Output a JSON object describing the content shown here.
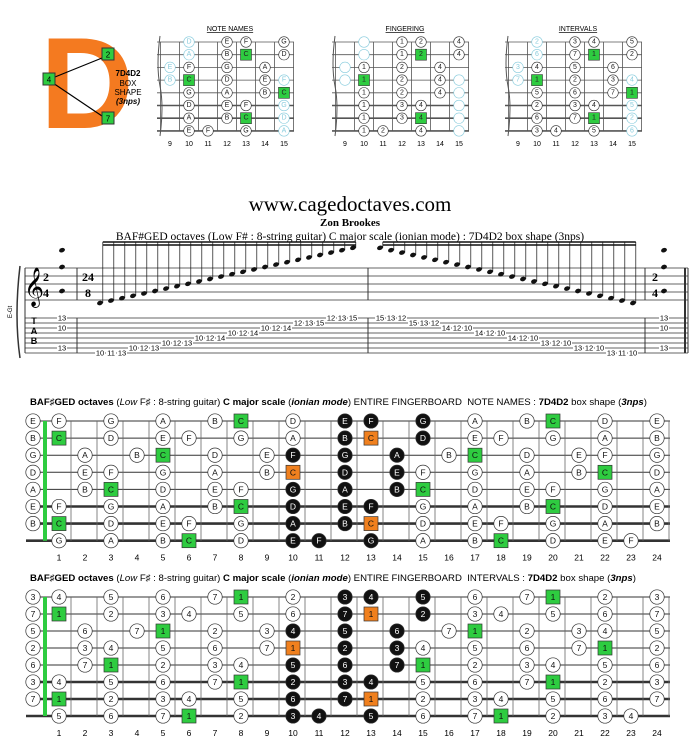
{
  "logo": {
    "letter": "D",
    "labels": [
      "2",
      "4",
      "7"
    ],
    "name": "7D4D2",
    "lines": [
      "BOX",
      "SHAPE",
      "(3nps)"
    ]
  },
  "small": {
    "headers": [
      "NOTE NAMES",
      "FINGERING",
      "INTERVALS"
    ],
    "frets": [
      9,
      10,
      11,
      12,
      13,
      14,
      15
    ],
    "fingers": [
      [
        1,
        2,
        4
      ],
      [
        1,
        2,
        4
      ],
      [
        1,
        2,
        4
      ],
      [
        1,
        2,
        4
      ],
      [
        1,
        2,
        4
      ],
      [
        1,
        3,
        4
      ],
      [
        1,
        3,
        4
      ],
      [
        1,
        2,
        4
      ]
    ]
  },
  "site": "www.cagedoctaves.com",
  "author": "Zon Brookes",
  "subtitle": "BAF#GED octaves (Low F# : 8-string guitar) C major scale (ionian mode) : 7D4D2 box shape (3nps)",
  "notation": {
    "instrument": "E-Gt",
    "tab_label": [
      "T",
      "A",
      "B"
    ],
    "time_start": [
      "2",
      "4"
    ],
    "time_run": [
      "24",
      "8"
    ],
    "time_end": [
      "2",
      "4"
    ],
    "chord": [
      [
        1,
        13
      ],
      [
        3,
        10
      ],
      [
        7,
        13
      ]
    ],
    "ascending": [
      [
        8,
        10
      ],
      [
        8,
        11
      ],
      [
        8,
        13
      ],
      [
        7,
        10
      ],
      [
        7,
        12
      ],
      [
        7,
        13
      ],
      [
        6,
        10
      ],
      [
        6,
        12
      ],
      [
        6,
        13
      ],
      [
        5,
        10
      ],
      [
        5,
        12
      ],
      [
        5,
        14
      ],
      [
        4,
        10
      ],
      [
        4,
        12
      ],
      [
        4,
        14
      ],
      [
        3,
        10
      ],
      [
        3,
        12
      ],
      [
        3,
        14
      ],
      [
        2,
        12
      ],
      [
        2,
        13
      ],
      [
        2,
        15
      ],
      [
        1,
        12
      ],
      [
        1,
        13
      ],
      [
        1,
        15
      ]
    ],
    "descending": [
      [
        1,
        15
      ],
      [
        1,
        13
      ],
      [
        1,
        12
      ],
      [
        2,
        15
      ],
      [
        2,
        13
      ],
      [
        2,
        12
      ],
      [
        3,
        14
      ],
      [
        3,
        12
      ],
      [
        3,
        10
      ],
      [
        4,
        14
      ],
      [
        4,
        12
      ],
      [
        4,
        10
      ],
      [
        5,
        14
      ],
      [
        5,
        12
      ],
      [
        5,
        10
      ],
      [
        6,
        13
      ],
      [
        6,
        12
      ],
      [
        6,
        10
      ],
      [
        7,
        13
      ],
      [
        7,
        12
      ],
      [
        7,
        10
      ],
      [
        8,
        13
      ],
      [
        8,
        11
      ],
      [
        8,
        10
      ]
    ]
  },
  "boards": [
    {
      "title_parts": [
        {
          "text": "BAF♯GED octaves",
          "b": true
        },
        {
          "text": " ("
        },
        {
          "text": "Low",
          "i": true
        },
        {
          "text": " F♯ : 8-string guitar) "
        },
        {
          "text": "C major scale",
          "b": true
        },
        {
          "text": " ("
        },
        {
          "text": "ionian mode",
          "b": true,
          "i": true
        },
        {
          "text": ") ENTIRE FINGERBOARD  NOTE NAMES : "
        },
        {
          "text": "7D4D2",
          "b": true
        },
        {
          "text": " box shape ("
        },
        {
          "text": "3nps",
          "b": true,
          "i": true
        },
        {
          "text": ")"
        }
      ],
      "rows": [
        [
          "E",
          "F",
          null,
          "G",
          null,
          "A",
          null,
          "B",
          "C",
          null,
          "D",
          null,
          "E",
          "F",
          null,
          "G",
          null,
          "A",
          null,
          "B",
          "C",
          null,
          "D",
          null,
          "E"
        ],
        [
          "B",
          "C",
          null,
          "D",
          null,
          "E",
          "F",
          null,
          "G",
          null,
          "A",
          null,
          "B",
          "C",
          null,
          "D",
          null,
          "E",
          "F",
          null,
          "G",
          null,
          "A",
          null,
          "B"
        ],
        [
          "G",
          null,
          "A",
          null,
          "B",
          "C",
          null,
          "D",
          null,
          "E",
          "F",
          null,
          "G",
          null,
          "A",
          null,
          "B",
          "C",
          null,
          "D",
          null,
          "E",
          "F",
          null,
          "G"
        ],
        [
          "D",
          null,
          "E",
          "F",
          null,
          "G",
          null,
          "A",
          null,
          "B",
          "C",
          null,
          "D",
          null,
          "E",
          "F",
          null,
          "G",
          null,
          "A",
          null,
          "B",
          "C",
          null,
          "D"
        ],
        [
          "A",
          null,
          "B",
          "C",
          null,
          "D",
          null,
          "E",
          "F",
          null,
          "G",
          null,
          "A",
          null,
          "B",
          "C",
          null,
          "D",
          null,
          "E",
          "F",
          null,
          "G",
          null,
          "A"
        ],
        [
          "E",
          "F",
          null,
          "G",
          null,
          "A",
          null,
          "B",
          "C",
          null,
          "D",
          null,
          "E",
          "F",
          null,
          "G",
          null,
          "A",
          null,
          "B",
          "C",
          null,
          "D",
          null,
          "E"
        ],
        [
          "B",
          "C",
          null,
          "D",
          null,
          "E",
          "F",
          null,
          "G",
          null,
          "A",
          null,
          "B",
          "C",
          null,
          "D",
          null,
          "E",
          "F",
          null,
          "G",
          null,
          "A",
          null,
          "B"
        ],
        [
          null,
          "G",
          null,
          "A",
          null,
          "B",
          "C",
          null,
          "D",
          null,
          "E",
          "F",
          null,
          "G",
          null,
          "A",
          null,
          "B",
          "C",
          null,
          "D",
          null,
          "E",
          "F",
          null
        ]
      ]
    },
    {
      "title_parts": [
        {
          "text": "BAF♯GED octaves",
          "b": true
        },
        {
          "text": " ("
        },
        {
          "text": "Low",
          "i": true
        },
        {
          "text": " F♯ : 8-string guitar) "
        },
        {
          "text": "C major scale",
          "b": true
        },
        {
          "text": " ("
        },
        {
          "text": "ionian mode",
          "b": true,
          "i": true
        },
        {
          "text": ") ENTIRE FINGERBOARD  INTERVALS : "
        },
        {
          "text": "7D4D2",
          "b": true
        },
        {
          "text": " box shape ("
        },
        {
          "text": "3nps",
          "b": true,
          "i": true
        },
        {
          "text": ")"
        }
      ],
      "rows": [
        [
          3,
          4,
          null,
          5,
          null,
          6,
          null,
          7,
          1,
          null,
          2,
          null,
          3,
          4,
          null,
          5,
          null,
          6,
          null,
          7,
          1,
          null,
          2,
          null,
          3
        ],
        [
          7,
          1,
          null,
          2,
          null,
          3,
          4,
          null,
          5,
          null,
          6,
          null,
          7,
          1,
          null,
          2,
          null,
          3,
          4,
          null,
          5,
          null,
          6,
          null,
          7
        ],
        [
          5,
          null,
          6,
          null,
          7,
          1,
          null,
          2,
          null,
          3,
          4,
          null,
          5,
          null,
          6,
          null,
          7,
          1,
          null,
          2,
          null,
          3,
          4,
          null,
          5
        ],
        [
          2,
          null,
          3,
          4,
          null,
          5,
          null,
          6,
          null,
          7,
          1,
          null,
          2,
          null,
          3,
          4,
          null,
          5,
          null,
          6,
          null,
          7,
          1,
          null,
          2
        ],
        [
          6,
          null,
          7,
          1,
          null,
          2,
          null,
          3,
          4,
          null,
          5,
          null,
          6,
          null,
          7,
          1,
          null,
          2,
          null,
          3,
          4,
          null,
          5,
          null,
          6
        ],
        [
          3,
          4,
          null,
          5,
          null,
          6,
          null,
          7,
          1,
          null,
          2,
          null,
          3,
          4,
          null,
          5,
          null,
          6,
          null,
          7,
          1,
          null,
          2,
          null,
          3
        ],
        [
          7,
          1,
          null,
          2,
          null,
          3,
          4,
          null,
          5,
          null,
          6,
          null,
          7,
          1,
          null,
          2,
          null,
          3,
          4,
          null,
          5,
          null,
          6,
          null,
          7
        ],
        [
          null,
          5,
          null,
          6,
          null,
          7,
          1,
          null,
          2,
          null,
          3,
          4,
          null,
          5,
          null,
          6,
          null,
          7,
          1,
          null,
          2,
          null,
          3,
          4,
          null
        ]
      ]
    }
  ],
  "highlights": {
    "green": [
      [
        8,
        20
      ],
      [
        1
      ],
      [
        5,
        17
      ],
      [
        22
      ],
      [
        3,
        15
      ],
      [
        8,
        20
      ],
      [
        1
      ],
      [
        6,
        18
      ]
    ],
    "orange": [
      [],
      [
        13
      ],
      [],
      [
        10
      ],
      [],
      [],
      [
        13
      ],
      []
    ],
    "black": [
      [
        12,
        13,
        15
      ],
      [
        12,
        15
      ],
      [
        10,
        12,
        14
      ],
      [
        12,
        14
      ],
      [
        10,
        12,
        14
      ],
      [
        10,
        12,
        13
      ],
      [
        10,
        12
      ],
      [
        10,
        11,
        13
      ]
    ]
  },
  "fret_numbers": [
    1,
    2,
    3,
    4,
    5,
    6,
    7,
    8,
    9,
    10,
    11,
    12,
    13,
    14,
    15,
    16,
    17,
    18,
    19,
    20,
    21,
    22,
    23,
    24
  ]
}
